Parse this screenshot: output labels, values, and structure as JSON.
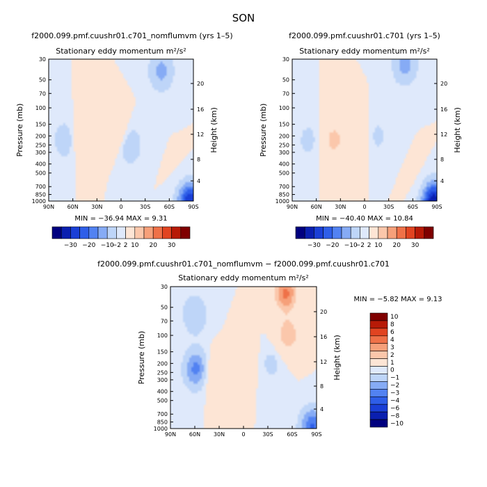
{
  "season": "SON",
  "colors": {
    "top_levels": [
      "#00007f",
      "#0a1fb0",
      "#1a3fd6",
      "#2e5ee8",
      "#5282f2",
      "#86abf5",
      "#bed5f8",
      "#dfe9fb",
      "#fde5d5",
      "#fbc7ab",
      "#f6a07a",
      "#ef7148",
      "#e14421",
      "#b71a07",
      "#7f0000"
    ],
    "diff_levels": [
      "#00007f",
      "#0a1fb0",
      "#1a3fd6",
      "#2e5ee8",
      "#5282f2",
      "#86abf5",
      "#bed5f8",
      "#dfe9fb",
      "#fde5d5",
      "#fbc7ab",
      "#f6a07a",
      "#ef7148",
      "#e14421",
      "#b71a07",
      "#7f0000"
    ]
  },
  "chart_data": [
    {
      "type": "heatmap",
      "title": "f2000.099.pmf.cuushr01.c701_nomflumvm (yrs 1–5)",
      "subtitle": "Stationary eddy momentum  m²/s²",
      "xlabel": "",
      "ylabel": "Pressure (mb)",
      "ylabel_right": "Height (km)",
      "x_ticks": [
        "90N",
        "60N",
        "30N",
        "0",
        "30S",
        "60S",
        "90S"
      ],
      "y_ticks": [
        "30",
        "50",
        "70",
        "100",
        "150",
        "200",
        "250",
        "300",
        "400",
        "500",
        "700",
        "850",
        "1000"
      ],
      "y_ticks_right": [
        "20",
        "16",
        "12",
        "8",
        "4"
      ],
      "xlim": [
        90,
        -90
      ],
      "ylim_mb": [
        1000,
        30
      ],
      "stats": "MIN =   −36.94   MAX =    9.31",
      "min": -36.94,
      "max": 9.31,
      "colorbar": {
        "orientation": "horizontal",
        "labels": [
          "−30",
          "−20",
          "−10",
          "−2",
          "2",
          "10",
          "20",
          "30"
        ]
      },
      "features": [
        {
          "lat": 47,
          "p": 210,
          "value": 6
        },
        {
          "lat": 2,
          "p": 200,
          "value": 6
        },
        {
          "lat": 70,
          "p": 220,
          "value": -6
        },
        {
          "lat": -50,
          "p": 40,
          "value": -10
        },
        {
          "lat": -10,
          "p": 250,
          "value": -8
        },
        {
          "lat": -82,
          "p": 850,
          "value": 8
        },
        {
          "lat": -85,
          "p": 980,
          "value": -36
        }
      ]
    },
    {
      "type": "heatmap",
      "title": "f2000.099.pmf.cuushr01.c701 (yrs 1–5)",
      "subtitle": "Stationary eddy momentum  m²/s²",
      "xlabel": "",
      "ylabel": "Pressure (mb)",
      "ylabel_right": "Height (km)",
      "x_ticks": [
        "90N",
        "60N",
        "30N",
        "0",
        "30S",
        "60S",
        "90S"
      ],
      "y_ticks": [
        "30",
        "50",
        "70",
        "100",
        "150",
        "200",
        "250",
        "300",
        "400",
        "500",
        "700",
        "850",
        "1000"
      ],
      "y_ticks_right": [
        "20",
        "16",
        "12",
        "8",
        "4"
      ],
      "xlim": [
        90,
        -90
      ],
      "ylim_mb": [
        1000,
        30
      ],
      "stats": "MIN =   −40.40   MAX =   10.84",
      "min": -40.4,
      "max": 10.84,
      "colorbar": {
        "orientation": "horizontal",
        "labels": [
          "−30",
          "−20",
          "−10",
          "−2",
          "2",
          "10",
          "20",
          "30"
        ]
      },
      "features": [
        {
          "lat": 38,
          "p": 220,
          "value": 10
        },
        {
          "lat": 5,
          "p": 200,
          "value": 4
        },
        {
          "lat": 70,
          "p": 220,
          "value": -4
        },
        {
          "lat": -50,
          "p": 35,
          "value": -10
        },
        {
          "lat": -15,
          "p": 200,
          "value": -4
        },
        {
          "lat": -80,
          "p": 850,
          "value": 8
        },
        {
          "lat": -85,
          "p": 980,
          "value": -40
        }
      ]
    },
    {
      "type": "heatmap",
      "title": "f2000.099.pmf.cuushr01.c701_nomflumvm − f2000.099.pmf.cuushr01.c701",
      "subtitle": "Stationary eddy momentum  m²/s²",
      "xlabel": "",
      "ylabel": "Pressure (mb)",
      "ylabel_right": "Height (km)",
      "x_ticks": [
        "90N",
        "60N",
        "30N",
        "0",
        "30S",
        "60S",
        "90S"
      ],
      "y_ticks": [
        "30",
        "50",
        "70",
        "100",
        "150",
        "200",
        "250",
        "300",
        "400",
        "500",
        "700",
        "850",
        "1000"
      ],
      "y_ticks_right": [
        "20",
        "16",
        "12",
        "8",
        "4"
      ],
      "xlim": [
        90,
        -90
      ],
      "ylim_mb": [
        1000,
        30
      ],
      "stats": "MIN =   −5.82   MAX =    9.13",
      "min": -5.82,
      "max": 9.13,
      "colorbar": {
        "orientation": "vertical",
        "labels": [
          "10",
          "8",
          "6",
          "4",
          "3",
          "2",
          "1",
          "0",
          "−1",
          "−2",
          "−3",
          "−4",
          "−6",
          "−8",
          "−10"
        ]
      },
      "features": [
        {
          "lat": 58,
          "p": 230,
          "value": -4
        },
        {
          "lat": 60,
          "p": 60,
          "value": -2
        },
        {
          "lat": -52,
          "p": 35,
          "value": 5
        },
        {
          "lat": -55,
          "p": 100,
          "value": 3
        },
        {
          "lat": 0,
          "p": 180,
          "value": 1.5
        },
        {
          "lat": 40,
          "p": 250,
          "value": 1.5
        },
        {
          "lat": -35,
          "p": 200,
          "value": -1
        },
        {
          "lat": -85,
          "p": 990,
          "value": -5
        }
      ]
    }
  ]
}
